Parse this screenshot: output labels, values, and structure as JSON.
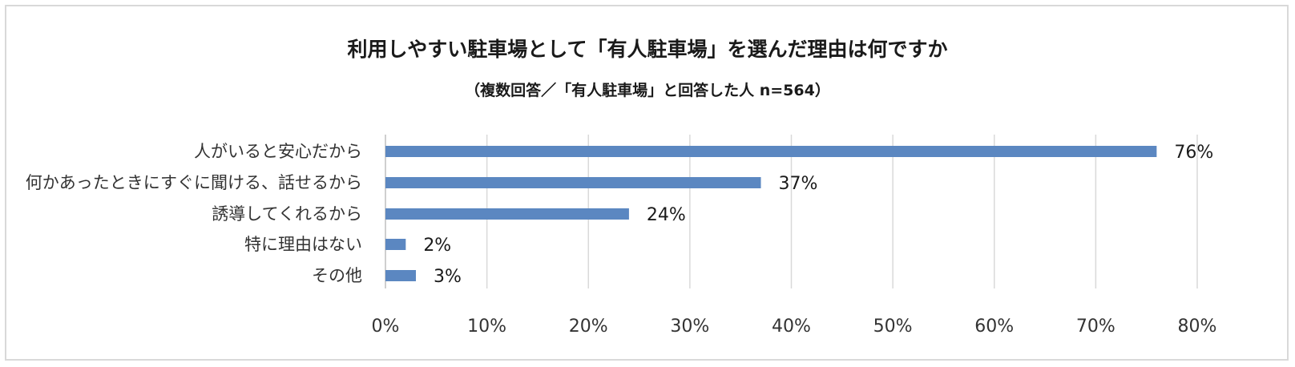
{
  "chart_data": {
    "type": "bar",
    "orientation": "horizontal",
    "title": "利用しやすい駐車場として「有人駐車場」を選んだ理由は何ですか",
    "subtitle": "（複数回答／「有人駐車場」と回答した人 n=564）",
    "categories": [
      "人がいると安心だから",
      "何かあったときにすぐに聞ける、話せるから",
      "誘導してくれるから",
      "特に理由はない",
      "その他"
    ],
    "values": [
      76,
      37,
      24,
      2,
      3
    ],
    "data_labels": [
      "76%",
      "37%",
      "24%",
      "2%",
      "3%"
    ],
    "x_ticks": [
      "0%",
      "10%",
      "20%",
      "30%",
      "40%",
      "50%",
      "60%",
      "70%",
      "80%"
    ],
    "xlim": [
      0,
      80
    ],
    "xlabel": "",
    "ylabel": "",
    "grid": true,
    "legend": "none",
    "colors": {
      "bar": "#5b87c1",
      "grid": "#d9d9d9",
      "axis": "#bfbfbf"
    }
  }
}
